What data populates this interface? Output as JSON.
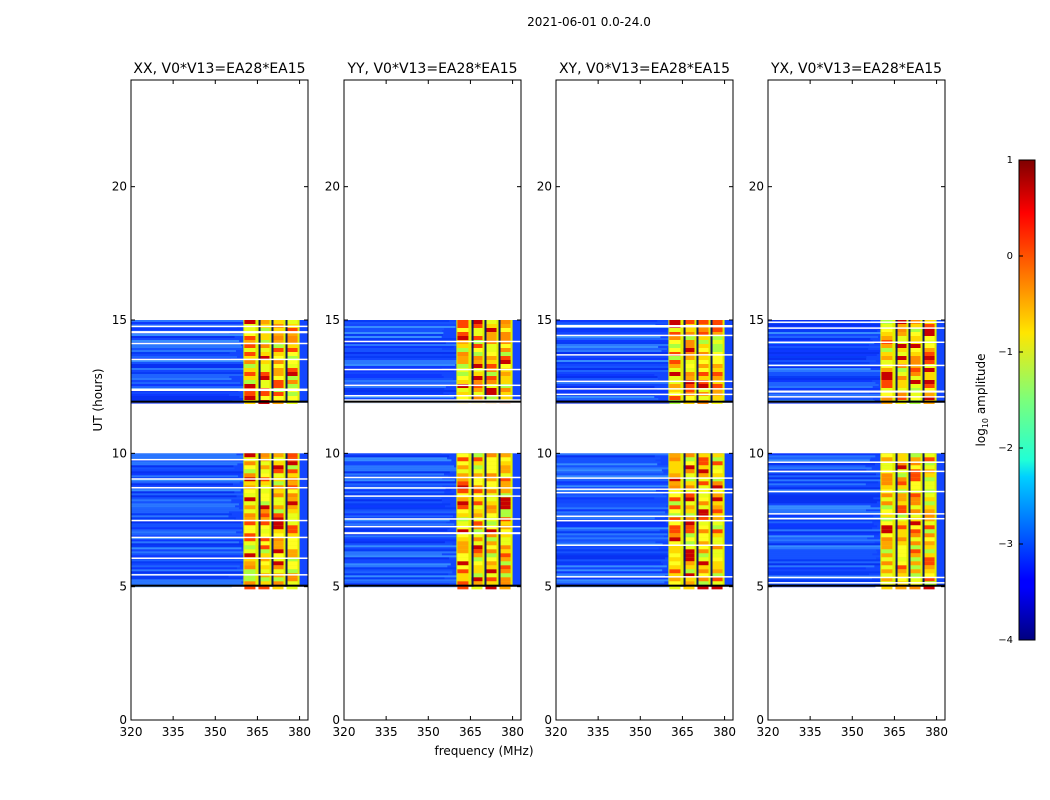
{
  "suptitle": "2021-06-01 0.0-24.0",
  "chart_data": {
    "type": "heatmap",
    "x_label": "frequency (MHz)",
    "y_label": "UT (hours)",
    "x_range": [
      320,
      383
    ],
    "y_range": [
      0,
      24
    ],
    "x_ticks": [
      320,
      335,
      350,
      365,
      380
    ],
    "x_tick_labels": [
      "320",
      "335",
      "350",
      "365",
      "380"
    ],
    "y_ticks": [
      0,
      5,
      10,
      15,
      20
    ],
    "y_tick_labels": [
      "0",
      "5",
      "10",
      "15",
      "20"
    ],
    "observation_blocks_hours": [
      [
        5.0,
        10.0
      ],
      [
        11.9,
        15.0
      ]
    ],
    "strong_band_mhz": [
      360,
      380
    ],
    "panels": [
      {
        "title": "XX, V0*V13=EA28*EA15"
      },
      {
        "title": "YY, V0*V13=EA28*EA15"
      },
      {
        "title": "XY, V0*V13=EA28*EA15"
      },
      {
        "title": "YX, V0*V13=EA28*EA15"
      }
    ],
    "colorbar": {
      "label_main": "log",
      "label_sub": "10",
      "label_tail": " amplitude",
      "range": [
        -4,
        1
      ],
      "ticks": [
        1,
        0,
        -1,
        -2,
        -3,
        -4
      ],
      "tick_labels": [
        "1",
        "0",
        "−1",
        "−2",
        "−3",
        "−4"
      ],
      "colormap": "jet"
    }
  }
}
